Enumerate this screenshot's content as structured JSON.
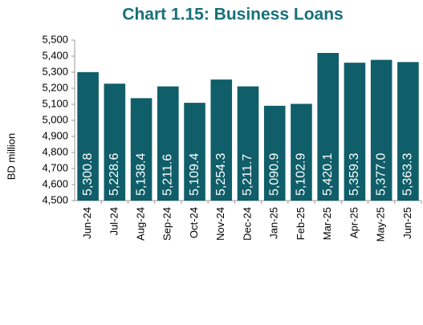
{
  "chart_data": {
    "type": "bar",
    "title": "Chart 1.15: Business Loans",
    "y_label": "BD million",
    "categories": [
      "Jun-24",
      "Jul-24",
      "Aug-24",
      "Sep-24",
      "Oct-24",
      "Nov-24",
      "Dec-24",
      "Jan-25",
      "Feb-25",
      "Mar-25",
      "Apr-25",
      "May-25",
      "Jun-25"
    ],
    "values": [
      5300.8,
      5228.6,
      5138.4,
      5211.6,
      5109.4,
      5254.3,
      5211.7,
      5090.9,
      5102.9,
      5420.1,
      5359.3,
      5377.0,
      5363.3
    ],
    "value_labels": [
      "5,300.8",
      "5,228.6",
      "5,138.4",
      "5,211.6",
      "5,109.4",
      "5,254.3",
      "5,211.7",
      "5,090.9",
      "5,102.9",
      "5,420.1",
      "5,359.3",
      "5,377.0",
      "5,363.3"
    ],
    "color": "#0f5e69",
    "ylim": [
      4500,
      5500
    ],
    "yticks": [
      {
        "value": 4500,
        "label": "4,500"
      },
      {
        "value": 4600,
        "label": "4,600"
      },
      {
        "value": 4700,
        "label": "4,700"
      },
      {
        "value": 4800,
        "label": "4,800"
      },
      {
        "value": 4900,
        "label": "4,900"
      },
      {
        "value": 5000,
        "label": "5,000"
      },
      {
        "value": 5100,
        "label": "5,100"
      },
      {
        "value": 5200,
        "label": "5,200"
      },
      {
        "value": 5300,
        "label": "5,300"
      },
      {
        "value": 5400,
        "label": "5,400"
      },
      {
        "value": 5500,
        "label": "5,500"
      }
    ],
    "grid": false
  }
}
